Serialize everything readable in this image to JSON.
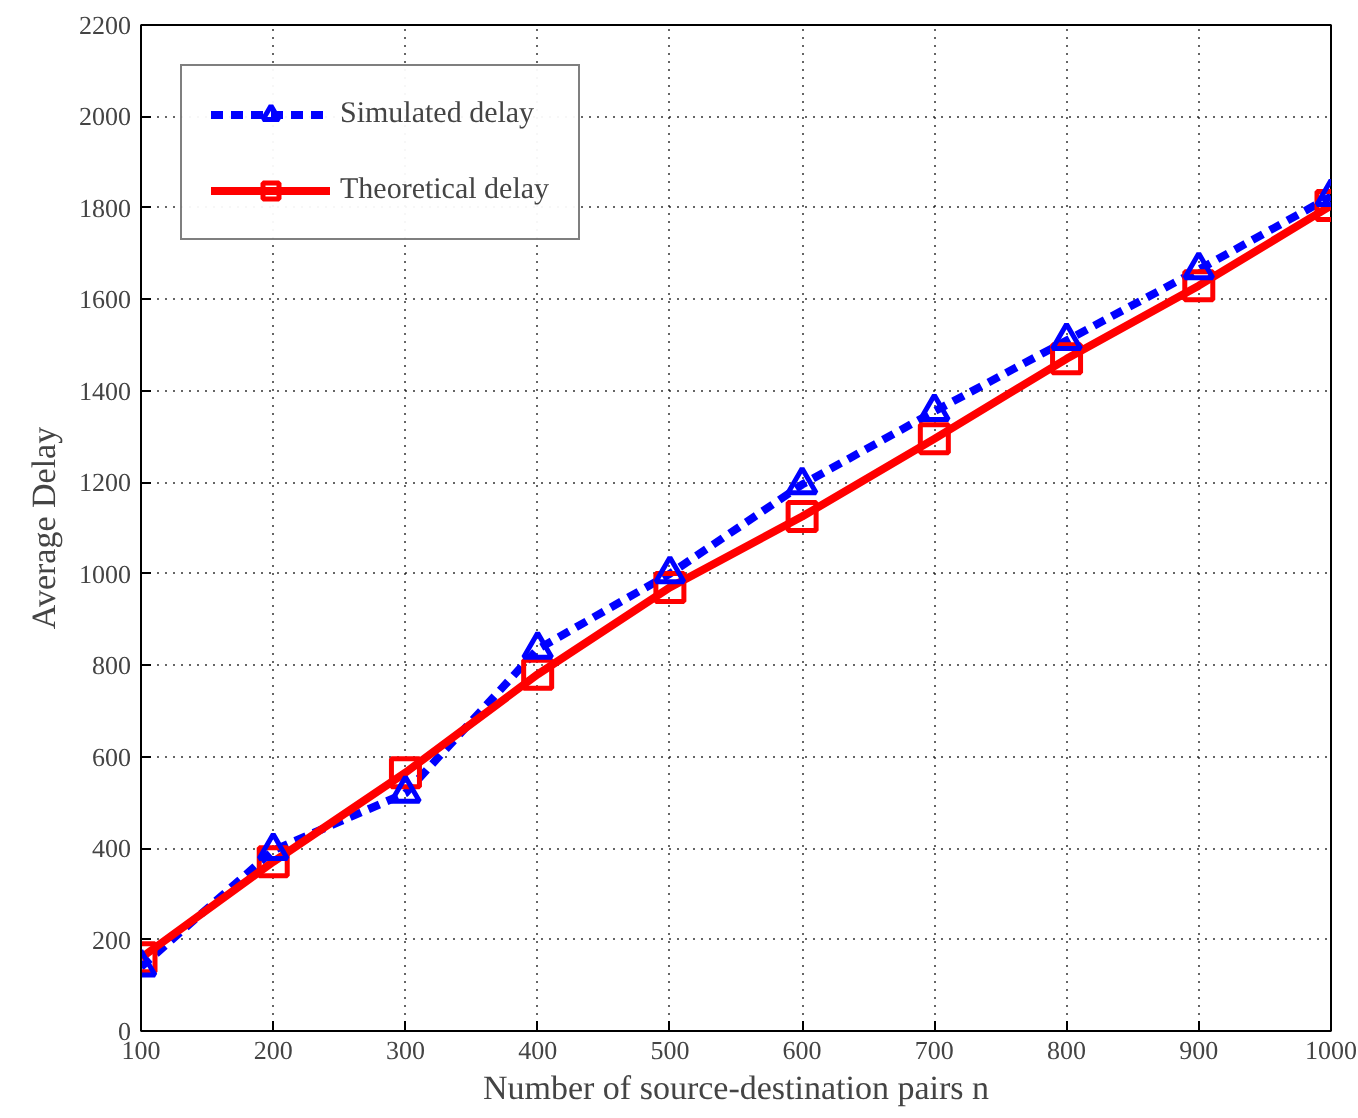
{
  "chart_data": {
    "type": "line",
    "xlabel": "Number of source-destination pairs n",
    "ylabel": "Average Delay",
    "x": [
      100,
      200,
      300,
      400,
      500,
      600,
      700,
      800,
      900,
      1000
    ],
    "series": [
      {
        "name": "Simulated delay",
        "color": "#0000ff",
        "marker": "triangle",
        "line_style": "dashed",
        "values": [
          140,
          395,
          520,
          835,
          1000,
          1195,
          1355,
          1510,
          1665,
          1825
        ]
      },
      {
        "name": "Theoretical delay",
        "color": "#ff0000",
        "marker": "square",
        "line_style": "solid",
        "values": [
          160,
          370,
          565,
          780,
          970,
          1125,
          1295,
          1470,
          1630,
          1805
        ]
      }
    ],
    "xlim": [
      100,
      1000
    ],
    "ylim": [
      0,
      2200
    ],
    "xticks": [
      100,
      200,
      300,
      400,
      500,
      600,
      700,
      800,
      900,
      1000
    ],
    "yticks": [
      0,
      200,
      400,
      600,
      800,
      1000,
      1200,
      1400,
      1600,
      1800,
      2000,
      2200
    ],
    "grid": true,
    "legend": "top left"
  }
}
